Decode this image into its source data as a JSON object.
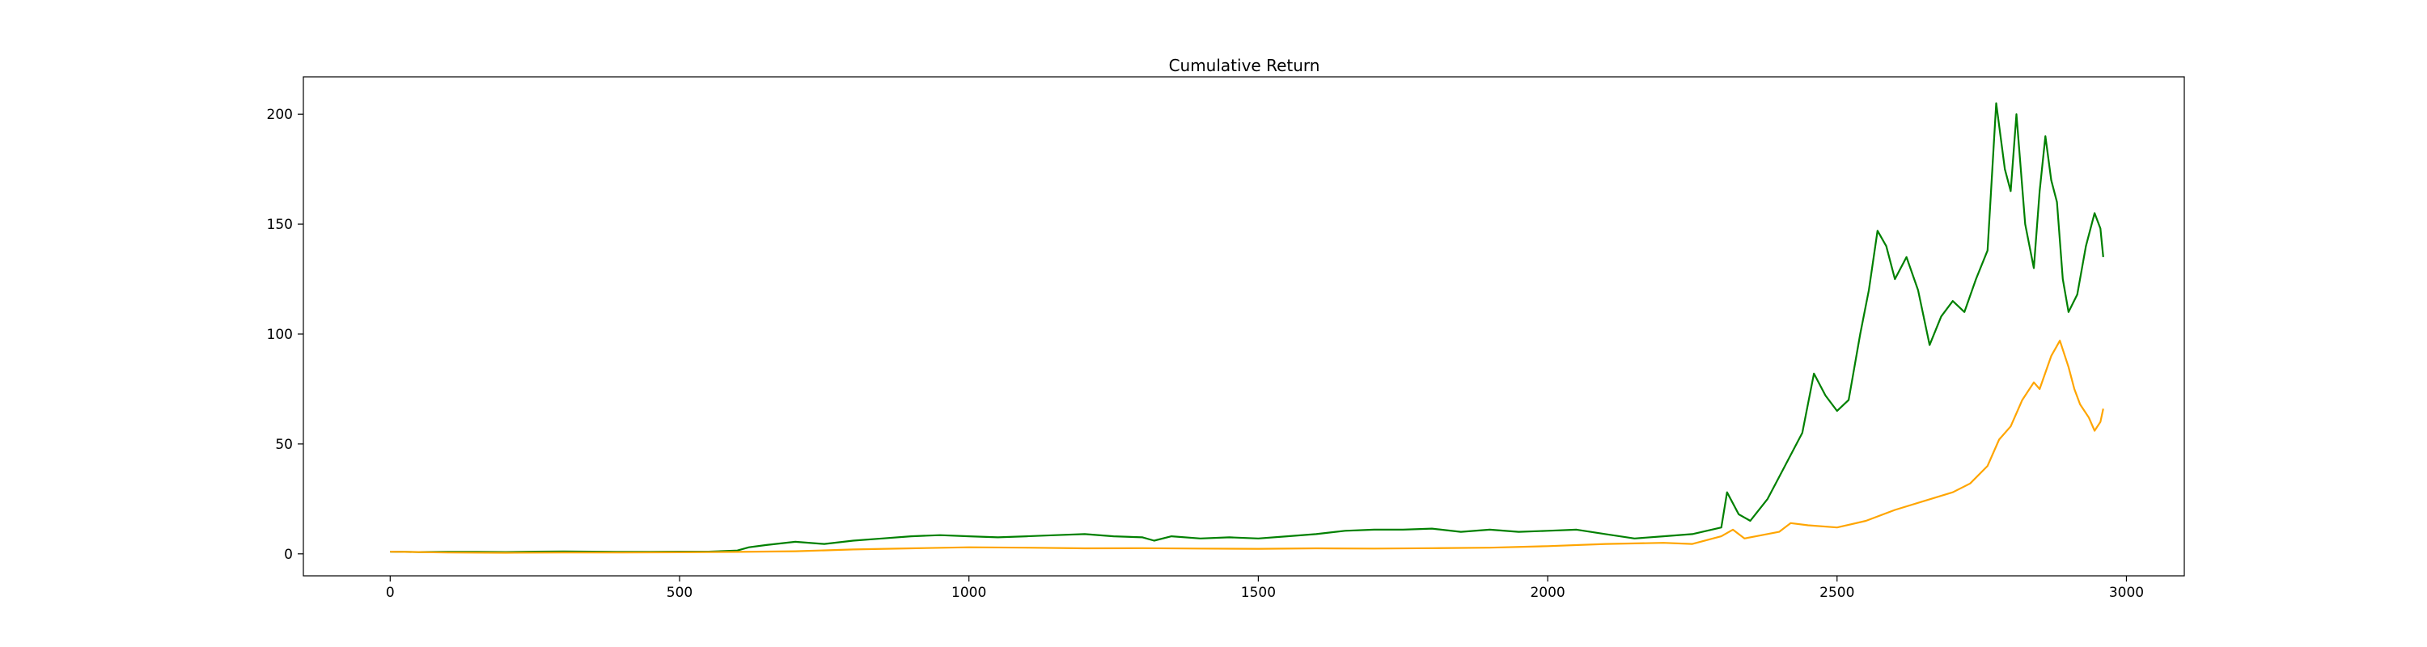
{
  "chart_data": {
    "type": "line",
    "title": "Cumulative Return",
    "xlabel": "",
    "ylabel": "",
    "xlim": [
      -150,
      3100
    ],
    "ylim": [
      -10,
      217
    ],
    "x_ticks": [
      0,
      500,
      1000,
      1500,
      2000,
      2500,
      3000
    ],
    "y_ticks": [
      0,
      50,
      100,
      150,
      200
    ],
    "grid": false,
    "legend": "none",
    "series": [
      {
        "color": "#008000",
        "points": [
          [
            0,
            1
          ],
          [
            50,
            0.8
          ],
          [
            100,
            0.9
          ],
          [
            150,
            0.9
          ],
          [
            200,
            0.8
          ],
          [
            250,
            1
          ],
          [
            300,
            1.1
          ],
          [
            350,
            1
          ],
          [
            400,
            0.9
          ],
          [
            450,
            0.9
          ],
          [
            500,
            1
          ],
          [
            550,
            1
          ],
          [
            600,
            1.5
          ],
          [
            620,
            3
          ],
          [
            650,
            4
          ],
          [
            700,
            5.5
          ],
          [
            750,
            4.5
          ],
          [
            800,
            6
          ],
          [
            850,
            7
          ],
          [
            900,
            8
          ],
          [
            950,
            8.5
          ],
          [
            1000,
            8
          ],
          [
            1050,
            7.5
          ],
          [
            1100,
            8
          ],
          [
            1150,
            8.5
          ],
          [
            1200,
            9
          ],
          [
            1250,
            8
          ],
          [
            1300,
            7.5
          ],
          [
            1320,
            6
          ],
          [
            1350,
            8
          ],
          [
            1400,
            7
          ],
          [
            1450,
            7.5
          ],
          [
            1500,
            7
          ],
          [
            1550,
            8
          ],
          [
            1600,
            9
          ],
          [
            1650,
            10.5
          ],
          [
            1700,
            11
          ],
          [
            1750,
            11
          ],
          [
            1800,
            11.5
          ],
          [
            1850,
            10
          ],
          [
            1900,
            11
          ],
          [
            1950,
            10
          ],
          [
            2000,
            10.5
          ],
          [
            2050,
            11
          ],
          [
            2100,
            9
          ],
          [
            2150,
            7
          ],
          [
            2200,
            8
          ],
          [
            2250,
            9
          ],
          [
            2300,
            12
          ],
          [
            2310,
            28
          ],
          [
            2330,
            18
          ],
          [
            2350,
            15
          ],
          [
            2380,
            25
          ],
          [
            2400,
            35
          ],
          [
            2420,
            45
          ],
          [
            2440,
            55
          ],
          [
            2460,
            82
          ],
          [
            2480,
            72
          ],
          [
            2500,
            65
          ],
          [
            2520,
            70
          ],
          [
            2540,
            100
          ],
          [
            2555,
            120
          ],
          [
            2570,
            147
          ],
          [
            2585,
            140
          ],
          [
            2600,
            125
          ],
          [
            2620,
            135
          ],
          [
            2640,
            120
          ],
          [
            2660,
            95
          ],
          [
            2680,
            108
          ],
          [
            2700,
            115
          ],
          [
            2720,
            110
          ],
          [
            2740,
            125
          ],
          [
            2760,
            138
          ],
          [
            2775,
            205
          ],
          [
            2790,
            175
          ],
          [
            2800,
            165
          ],
          [
            2810,
            200
          ],
          [
            2825,
            150
          ],
          [
            2840,
            130
          ],
          [
            2850,
            165
          ],
          [
            2860,
            190
          ],
          [
            2870,
            170
          ],
          [
            2880,
            160
          ],
          [
            2890,
            125
          ],
          [
            2900,
            110
          ],
          [
            2915,
            118
          ],
          [
            2930,
            140
          ],
          [
            2945,
            155
          ],
          [
            2955,
            148
          ],
          [
            2960,
            135
          ]
        ]
      },
      {
        "color": "#FFA500",
        "points": [
          [
            0,
            1
          ],
          [
            100,
            0.6
          ],
          [
            200,
            0.5
          ],
          [
            300,
            0.6
          ],
          [
            400,
            0.6
          ],
          [
            500,
            0.7
          ],
          [
            600,
            0.9
          ],
          [
            700,
            1.2
          ],
          [
            800,
            2
          ],
          [
            900,
            2.5
          ],
          [
            1000,
            3
          ],
          [
            1100,
            2.8
          ],
          [
            1200,
            2.5
          ],
          [
            1300,
            2.6
          ],
          [
            1400,
            2.4
          ],
          [
            1500,
            2.3
          ],
          [
            1600,
            2.5
          ],
          [
            1700,
            2.4
          ],
          [
            1800,
            2.6
          ],
          [
            1900,
            2.8
          ],
          [
            2000,
            3.5
          ],
          [
            2100,
            4.5
          ],
          [
            2200,
            5
          ],
          [
            2250,
            4.5
          ],
          [
            2300,
            8
          ],
          [
            2320,
            11
          ],
          [
            2340,
            7
          ],
          [
            2360,
            8
          ],
          [
            2400,
            10
          ],
          [
            2420,
            14
          ],
          [
            2450,
            13
          ],
          [
            2500,
            12
          ],
          [
            2550,
            15
          ],
          [
            2600,
            20
          ],
          [
            2650,
            24
          ],
          [
            2700,
            28
          ],
          [
            2730,
            32
          ],
          [
            2760,
            40
          ],
          [
            2780,
            52
          ],
          [
            2800,
            58
          ],
          [
            2820,
            70
          ],
          [
            2840,
            78
          ],
          [
            2850,
            75
          ],
          [
            2870,
            90
          ],
          [
            2885,
            97
          ],
          [
            2900,
            85
          ],
          [
            2910,
            75
          ],
          [
            2920,
            68
          ],
          [
            2935,
            62
          ],
          [
            2945,
            56
          ],
          [
            2955,
            60
          ],
          [
            2960,
            66
          ]
        ]
      }
    ]
  }
}
